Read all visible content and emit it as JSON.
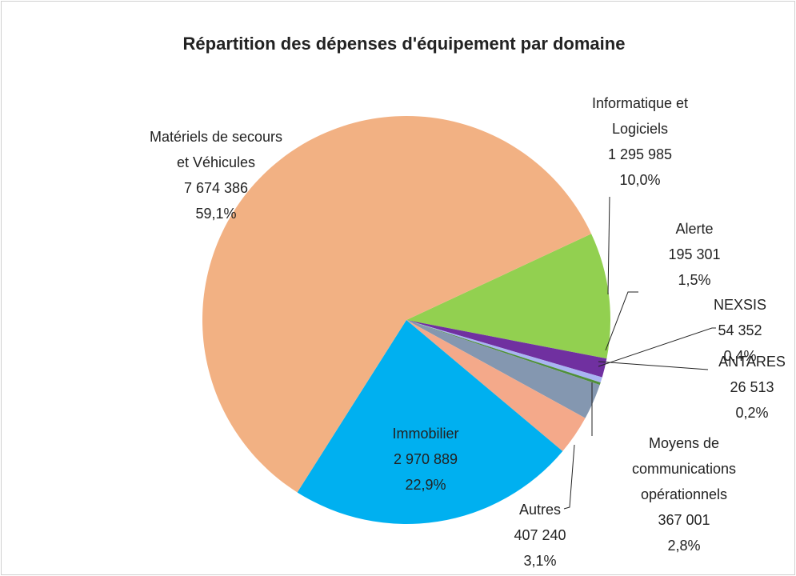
{
  "chart_data": {
    "type": "pie",
    "title": "Répartition des dépenses d'équipement par domaine",
    "categories": [
      "Informatique et\nLogiciels",
      "Alerte",
      "NEXSIS",
      "ANTARES",
      "Moyens de\ncommunications\nopérationnels",
      "Autres",
      "Immobilier",
      "Matériels de secours\net Véhicules"
    ],
    "values": [
      1295985,
      195301,
      54352,
      26513,
      367001,
      407240,
      2970889,
      7674386
    ],
    "value_labels": [
      "1 295 985",
      "195 301",
      "54 352",
      "26 513",
      "367 001",
      "407 240",
      "2 970 889",
      "7 674 386"
    ],
    "percentages": [
      10.0,
      1.5,
      0.4,
      0.2,
      2.8,
      3.1,
      22.9,
      59.1
    ],
    "percentage_labels": [
      "10,0%",
      "1,5%",
      "0,4%",
      "0,2%",
      "2,8%",
      "3,1%",
      "22,9%",
      "59,1%"
    ],
    "colors": [
      "#92d050",
      "#7030a0",
      "#a9b4f2",
      "#4f8f3a",
      "#8497b0",
      "#f4a98a",
      "#00b0f0",
      "#f2b183"
    ]
  }
}
